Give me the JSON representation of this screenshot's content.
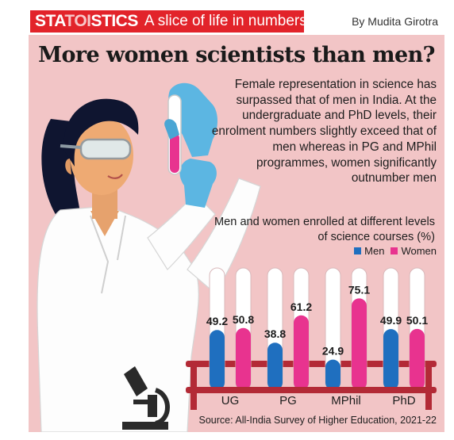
{
  "banner": {
    "brand_prefix": "STA",
    "brand_mid": "TOI",
    "brand_suffix": "STICS",
    "tagline": "A slice of life in numbers",
    "byline": "By Mudita Girotra"
  },
  "headline": "More women scientists than men?",
  "intro": "Female representation in science has surpassed that of men in India. At the undergraduate and PhD levels, their enrolment numbers slightly exceed that of men whereas in PG and MPhil programmes, women significantly outnumber men",
  "source": "Source: All-India Survey of Higher Education, 2021-22",
  "colors": {
    "background": "#f2c5c6",
    "brand_red": "#e2232a",
    "men": "#1f6fbf",
    "women": "#e8338f",
    "rack": "#b32a36"
  },
  "chart_data": {
    "type": "bar",
    "title": "Men and women enrolled at different levels of science courses (%)",
    "categories": [
      "UG",
      "PG",
      "MPhil",
      "PhD"
    ],
    "series": [
      {
        "name": "Men",
        "values": [
          49.2,
          38.8,
          24.9,
          49.9
        ]
      },
      {
        "name": "Women",
        "values": [
          50.8,
          61.2,
          75.1,
          50.1
        ]
      }
    ],
    "ylim": [
      0,
      100
    ],
    "legend": "top-right",
    "grid": false
  }
}
